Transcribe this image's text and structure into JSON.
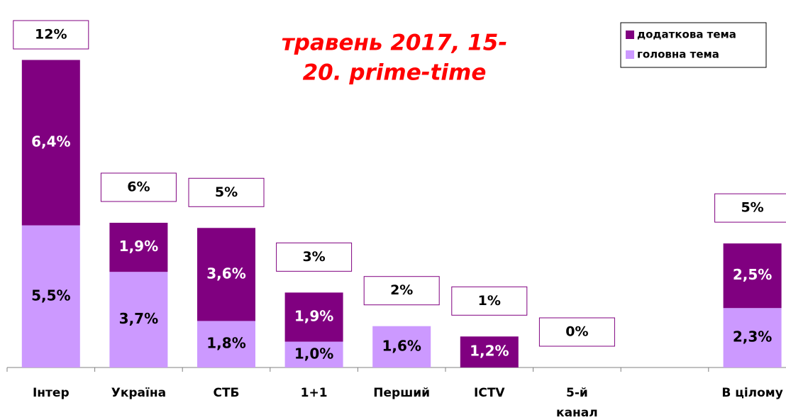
{
  "chart_data": {
    "type": "stacked_bar",
    "title_lines": [
      "травень 2017, 15-",
      "20. prime-time"
    ],
    "categories": [
      [
        "Інтер"
      ],
      [
        "Україна"
      ],
      [
        "СТБ"
      ],
      [
        "1+1"
      ],
      [
        "Перший"
      ],
      [
        "ICTV"
      ],
      [
        "5-й",
        "канал"
      ],
      null,
      [
        "В цілому"
      ]
    ],
    "series": [
      {
        "name": "головна тема",
        "color": "#cc99ff",
        "values": [
          5.5,
          3.7,
          1.8,
          1.0,
          1.6,
          null,
          null,
          null,
          2.3
        ],
        "value_labels": [
          "5,5%",
          "3,7%",
          "1,8%",
          "1,0%",
          "1,6%",
          null,
          null,
          null,
          "2,3%"
        ]
      },
      {
        "name": "додаткова тема",
        "color": "#800080",
        "values": [
          6.4,
          1.9,
          3.6,
          1.9,
          null,
          1.2,
          null,
          null,
          2.5
        ],
        "value_labels": [
          "6,4%",
          "1,9%",
          "3,6%",
          "1,9%",
          null,
          "1,2%",
          null,
          null,
          "2,5%"
        ]
      }
    ],
    "total_labels": [
      "12%",
      "6%",
      "5%",
      "3%",
      "2%",
      "1%",
      "0%",
      null,
      "5%"
    ],
    "ylim": [
      0,
      14
    ],
    "title_color": "#ff0000",
    "legend": "top-right"
  }
}
